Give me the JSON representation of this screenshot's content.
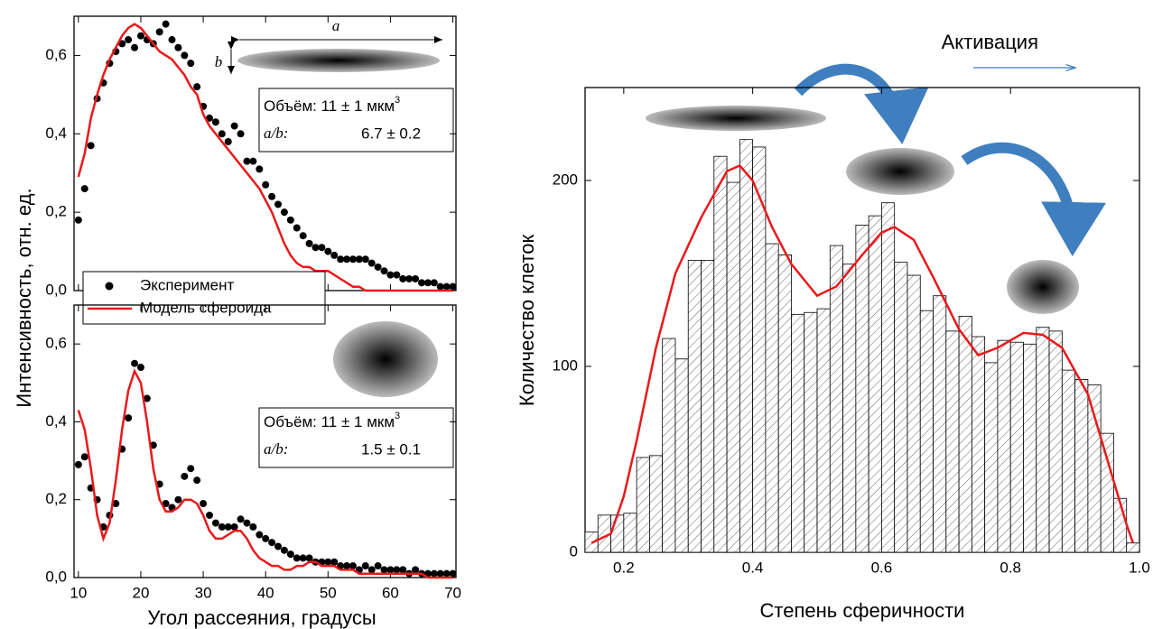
{
  "chart_data": [
    {
      "type": "line",
      "ylabel": "Интенсивность, отн. ед.",
      "xlim": [
        9.3,
        70.5
      ],
      "ylim": [
        0,
        0.7
      ],
      "yticks": [
        {
          "value": 0,
          "label": "0,0"
        },
        {
          "value": 0.2,
          "label": "0,2"
        },
        {
          "value": 0.4,
          "label": "0,4"
        },
        {
          "value": 0.6,
          "label": "0,6"
        }
      ],
      "annotations": {
        "a": "a",
        "b": "b",
        "volume": "Объём: 11 ± 1 мкм",
        "volume_sup": "3",
        "ratio_label": "a/b:",
        "ratio": "6.7 ± 0.2"
      },
      "x": [
        10,
        11,
        12,
        13,
        14,
        15,
        16,
        17,
        18,
        19,
        20,
        21,
        22,
        23,
        24,
        25,
        26,
        27,
        28,
        29,
        30,
        31,
        32,
        33,
        34,
        35,
        36,
        37,
        38,
        39,
        40,
        41,
        42,
        43,
        44,
        45,
        46,
        47,
        48,
        49,
        50,
        51,
        52,
        53,
        54,
        55,
        56,
        57,
        58,
        59,
        60,
        61,
        62,
        63,
        64,
        65,
        66,
        67,
        68,
        69,
        70
      ],
      "series": [
        {
          "name": "Эксперимент",
          "style": "markers",
          "color": "#000000",
          "values": [
            0.18,
            0.26,
            0.37,
            0.49,
            0.53,
            0.58,
            0.61,
            0.63,
            0.64,
            0.62,
            0.65,
            0.64,
            0.63,
            0.66,
            0.68,
            0.64,
            0.62,
            0.6,
            0.58,
            0.52,
            0.47,
            0.44,
            0.43,
            0.4,
            0.38,
            0.42,
            0.4,
            0.33,
            0.33,
            0.31,
            0.27,
            0.24,
            0.22,
            0.2,
            0.18,
            0.16,
            0.14,
            0.12,
            0.11,
            0.11,
            0.1,
            0.09,
            0.08,
            0.08,
            0.08,
            0.08,
            0.08,
            0.07,
            0.06,
            0.05,
            0.04,
            0.04,
            0.03,
            0.03,
            0.03,
            0.02,
            0.02,
            0.02,
            0.01,
            0.01,
            0.01
          ]
        },
        {
          "name": "Модель сфероида",
          "style": "line",
          "color": "#e8191c",
          "values": [
            0.29,
            0.35,
            0.44,
            0.5,
            0.55,
            0.59,
            0.62,
            0.65,
            0.67,
            0.68,
            0.67,
            0.65,
            0.63,
            0.61,
            0.6,
            0.59,
            0.57,
            0.55,
            0.52,
            0.5,
            0.45,
            0.42,
            0.4,
            0.38,
            0.36,
            0.34,
            0.32,
            0.3,
            0.28,
            0.26,
            0.23,
            0.2,
            0.16,
            0.12,
            0.09,
            0.07,
            0.06,
            0.06,
            0.05,
            0.05,
            0.05,
            0.04,
            0.03,
            0.02,
            0.01,
            0.01,
            0,
            0,
            0,
            0,
            0,
            0,
            0,
            0,
            0,
            0,
            0,
            0,
            0,
            0,
            0
          ]
        }
      ]
    },
    {
      "type": "line",
      "xlabel": "Угол рассеяния, градусы",
      "xlim": [
        9.3,
        70.5
      ],
      "ylim": [
        0,
        0.7
      ],
      "xticks": [
        10,
        20,
        30,
        40,
        50,
        60,
        70
      ],
      "yticks": [
        {
          "value": 0,
          "label": "0,0"
        },
        {
          "value": 0.2,
          "label": "0,2"
        },
        {
          "value": 0.4,
          "label": "0,4"
        },
        {
          "value": 0.6,
          "label": "0,6"
        }
      ],
      "annotations": {
        "volume": "Объём: 11 ± 1 мкм",
        "volume_sup": "3",
        "ratio_label": "a/b:",
        "ratio": "1.5 ± 0.1"
      },
      "x": [
        10,
        11,
        12,
        13,
        14,
        15,
        16,
        17,
        18,
        19,
        20,
        21,
        22,
        23,
        24,
        25,
        26,
        27,
        28,
        29,
        30,
        31,
        32,
        33,
        34,
        35,
        36,
        37,
        38,
        39,
        40,
        41,
        42,
        43,
        44,
        45,
        46,
        47,
        48,
        49,
        50,
        51,
        52,
        53,
        54,
        55,
        56,
        57,
        58,
        59,
        60,
        61,
        62,
        63,
        64,
        65,
        66,
        67,
        68,
        69,
        70
      ],
      "series": [
        {
          "style": "markers",
          "color": "#000000",
          "values": [
            0.29,
            0.31,
            0.23,
            0.2,
            0.13,
            0.16,
            0.19,
            0.33,
            0.41,
            0.55,
            0.54,
            0.46,
            0.34,
            0.24,
            0.19,
            0.18,
            0.2,
            0.26,
            0.28,
            0.25,
            0.19,
            0.16,
            0.14,
            0.13,
            0.13,
            0.13,
            0.15,
            0.14,
            0.13,
            0.11,
            0.1,
            0.09,
            0.08,
            0.07,
            0.06,
            0.05,
            0.05,
            0.05,
            0.04,
            0.04,
            0.04,
            0.04,
            0.03,
            0.03,
            0.03,
            0.02,
            0.03,
            0.02,
            0.03,
            0.02,
            0.02,
            0.02,
            0.02,
            0.01,
            0.02,
            0.01,
            0.01,
            0.01,
            0.01,
            0.01,
            0.01
          ]
        },
        {
          "style": "line",
          "color": "#e8191c",
          "values": [
            0.43,
            0.38,
            0.28,
            0.16,
            0.1,
            0.14,
            0.25,
            0.38,
            0.48,
            0.53,
            0.5,
            0.4,
            0.28,
            0.2,
            0.17,
            0.17,
            0.18,
            0.2,
            0.2,
            0.19,
            0.16,
            0.12,
            0.1,
            0.1,
            0.11,
            0.12,
            0.12,
            0.1,
            0.07,
            0.05,
            0.04,
            0.03,
            0.03,
            0.02,
            0.02,
            0.03,
            0.03,
            0.04,
            0.04,
            0.03,
            0.03,
            0.03,
            0.02,
            0.02,
            0.02,
            0.01,
            0.01,
            0.01,
            0.01,
            0.01,
            0.01,
            0.01,
            0.01,
            0.01,
            0.01,
            0.01,
            0,
            0,
            0,
            0,
            0
          ]
        }
      ]
    },
    {
      "type": "histogram",
      "annotation": "Активация",
      "xlabel": "Степень сферичности",
      "ylabel": "Количество клеток",
      "xlim": [
        0.14,
        1.0
      ],
      "ylim": [
        0,
        250
      ],
      "xticks": [
        0.2,
        0.4,
        0.6,
        0.8,
        {
          "value": 1,
          "label": "1.0"
        }
      ],
      "yticks": [
        0,
        100,
        200
      ],
      "bins": [
        0.14,
        0.16,
        0.18,
        0.2,
        0.22,
        0.24,
        0.26,
        0.28,
        0.3,
        0.32,
        0.34,
        0.36,
        0.38,
        0.4,
        0.42,
        0.44,
        0.46,
        0.48,
        0.5,
        0.52,
        0.54,
        0.56,
        0.58,
        0.6,
        0.62,
        0.64,
        0.66,
        0.68,
        0.7,
        0.72,
        0.74,
        0.76,
        0.78,
        0.8,
        0.82,
        0.84,
        0.86,
        0.88,
        0.9,
        0.92,
        0.94,
        0.96,
        0.98,
        1.0
      ],
      "values": [
        11,
        20,
        20,
        21,
        51,
        52,
        115,
        104,
        157,
        157,
        213,
        199,
        222,
        218,
        166,
        160,
        128,
        129,
        131,
        165,
        155,
        176,
        181,
        188,
        156,
        149,
        130,
        138,
        119,
        127,
        116,
        102,
        114,
        113,
        112,
        121,
        119,
        98,
        93,
        90,
        64,
        29,
        5
      ],
      "curve": {
        "color": "#e8191c",
        "x": [
          0.15,
          0.18,
          0.2,
          0.22,
          0.25,
          0.28,
          0.32,
          0.36,
          0.38,
          0.4,
          0.43,
          0.46,
          0.5,
          0.53,
          0.57,
          0.6,
          0.62,
          0.65,
          0.68,
          0.72,
          0.75,
          0.78,
          0.82,
          0.85,
          0.88,
          0.92,
          0.95,
          0.98,
          0.99
        ],
        "values": [
          5,
          10,
          30,
          60,
          110,
          150,
          180,
          205,
          208,
          200,
          175,
          155,
          138,
          143,
          160,
          172,
          175,
          168,
          148,
          120,
          106,
          110,
          118,
          117,
          110,
          85,
          50,
          15,
          5
        ]
      }
    }
  ]
}
